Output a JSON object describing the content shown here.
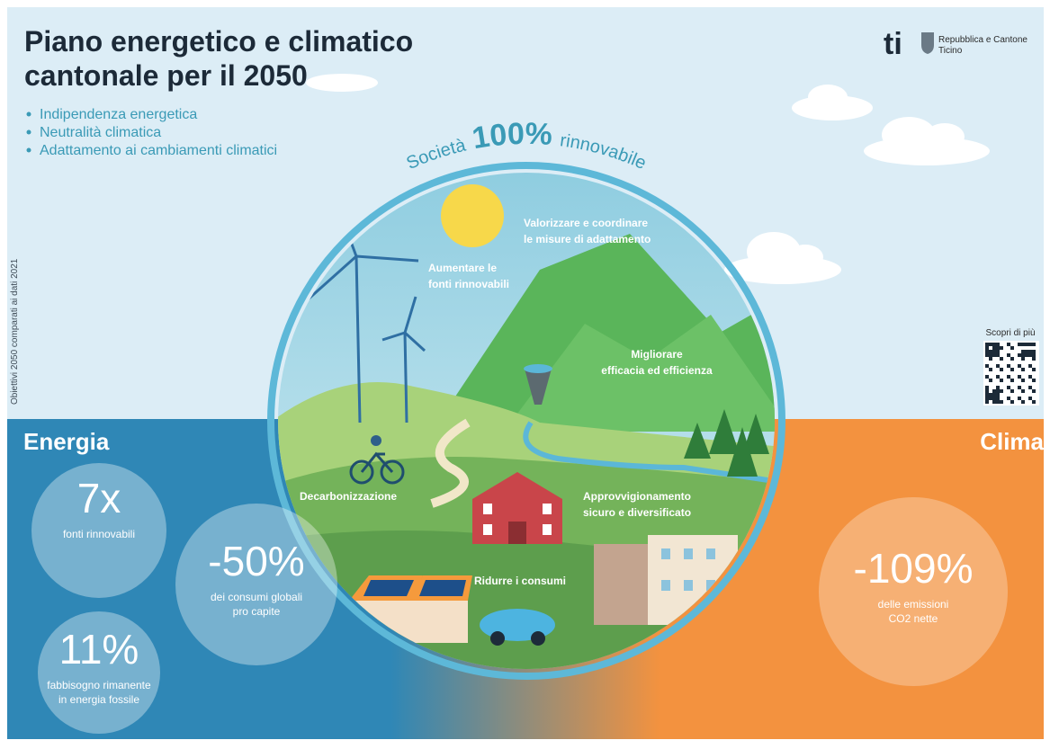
{
  "header": {
    "title_lines": [
      "Piano energetico e climatico",
      "cantonale per il 2050"
    ],
    "bullets": [
      "Indipendenza energetica",
      "Neutralità climatica",
      "Adattamento ai cambiamenti climatici"
    ]
  },
  "logo": {
    "mark": "ti",
    "text_lines": [
      "Repubblica e Cantone",
      "Ticino"
    ]
  },
  "side_note": "Obiettivi 2050 comparati ai dati 2021",
  "circle": {
    "arc": [
      "Società",
      "100%",
      "rinnovabile"
    ],
    "labels": [
      {
        "lines": [
          "Valorizzare e coordinare",
          "le misure di adattamento"
        ]
      },
      {
        "lines": [
          "Aumentare le",
          "fonti rinnovabili"
        ]
      },
      {
        "lines": [
          "Migliorare",
          "efficacia ed efficienza"
        ]
      },
      {
        "lines": [
          "Decarbonizzazione"
        ]
      },
      {
        "lines": [
          "Approvvigionamento",
          "sicuro e diversificato"
        ]
      },
      {
        "lines": [
          "Ridurre i consumi"
        ]
      }
    ]
  },
  "qr": {
    "label": "Scopri di più"
  },
  "energia": {
    "title": "Energia",
    "stats": [
      {
        "value": "7x",
        "caption_lines": [
          "fonti rinnovabili"
        ]
      },
      {
        "value": "11%",
        "caption_lines": [
          "fabbisogno rimanente",
          "in energia fossile"
        ]
      },
      {
        "value": "-50%",
        "caption_lines": [
          "dei consumi globali",
          "pro capite"
        ]
      }
    ]
  },
  "clima": {
    "title": "Clima",
    "stats": [
      {
        "value": "-109%",
        "caption_lines": [
          "delle emissioni",
          "CO2 nette"
        ]
      }
    ]
  }
}
